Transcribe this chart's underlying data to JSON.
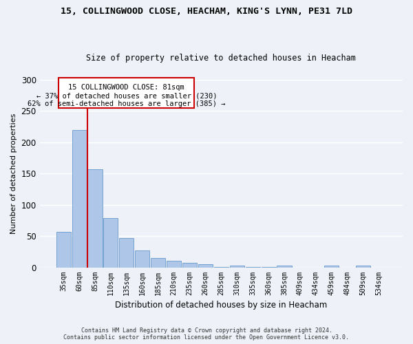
{
  "title": "15, COLLINGWOOD CLOSE, HEACHAM, KING'S LYNN, PE31 7LD",
  "subtitle": "Size of property relative to detached houses in Heacham",
  "xlabel": "Distribution of detached houses by size in Heacham",
  "ylabel": "Number of detached properties",
  "categories": [
    "35sqm",
    "60sqm",
    "85sqm",
    "110sqm",
    "135sqm",
    "160sqm",
    "185sqm",
    "210sqm",
    "235sqm",
    "260sqm",
    "285sqm",
    "310sqm",
    "335sqm",
    "360sqm",
    "385sqm",
    "409sqm",
    "434sqm",
    "459sqm",
    "484sqm",
    "509sqm",
    "534sqm"
  ],
  "values": [
    57,
    220,
    157,
    79,
    47,
    27,
    15,
    10,
    7,
    5,
    1,
    3,
    1,
    1,
    3,
    0,
    0,
    3,
    0,
    3,
    0
  ],
  "bar_color": "#aec6e8",
  "bar_edge_color": "#6699cc",
  "vline_x": 1.5,
  "vline_color": "#cc0000",
  "box_text_line1": "15 COLLINGWOOD CLOSE: 81sqm",
  "box_text_line2": "← 37% of detached houses are smaller (230)",
  "box_text_line3": "62% of semi-detached houses are larger (385) →",
  "box_color": "#cc0000",
  "box_fill": "#ffffff",
  "footer_line1": "Contains HM Land Registry data © Crown copyright and database right 2024.",
  "footer_line2": "Contains public sector information licensed under the Open Government Licence v3.0.",
  "ylim": [
    0,
    300
  ],
  "yticks": [
    0,
    50,
    100,
    150,
    200,
    250,
    300
  ],
  "background_color": "#eef2f8",
  "grid_color": "#ffffff",
  "title_fontsize": 9.5,
  "subtitle_fontsize": 8.5
}
